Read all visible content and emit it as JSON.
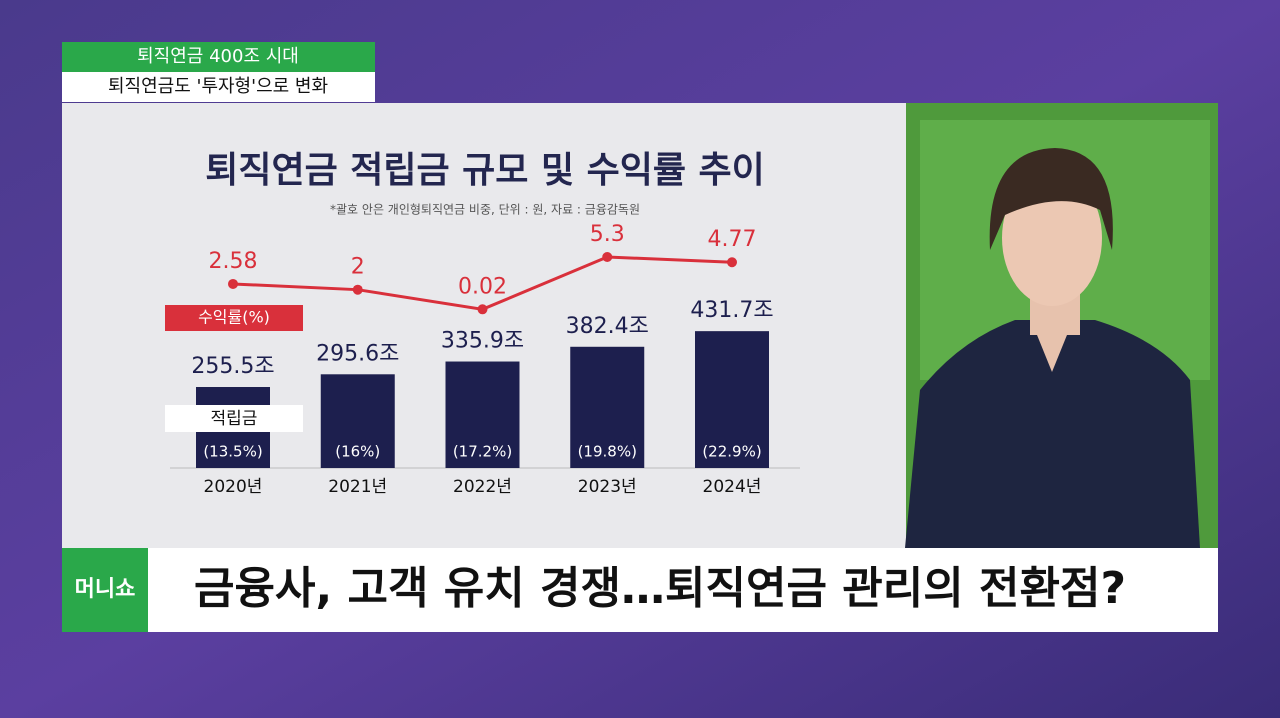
{
  "top_tag": {
    "title": "퇴직연금 400조 시대",
    "subtitle": "퇴직연금도 '투자형'으로 변화"
  },
  "chart_data": {
    "type": "bar_line",
    "title": "퇴직연금 적립금 규모 및 수익률 추이",
    "subtitle": "*괄호 안은 개인형퇴직연금 비중, 단위 : 원, 자료 : 금융감독원",
    "categories": [
      "2020년",
      "2021년",
      "2022년",
      "2023년",
      "2024년"
    ],
    "series": [
      {
        "name": "적립금",
        "color": "#1d1f4e",
        "values": [
          255.5,
          295.6,
          335.9,
          382.4,
          431.7
        ],
        "value_labels": [
          "255.5조",
          "295.6조",
          "335.9조",
          "382.4조",
          "431.7조"
        ],
        "share_labels": [
          "(13.5%)",
          "(16%)",
          "(17.2%)",
          "(19.8%)",
          "(22.9%)"
        ]
      },
      {
        "name": "수익률(%)",
        "color": "#d9303b",
        "values": [
          2.58,
          2,
          0.02,
          5.3,
          4.77
        ],
        "axis": "y2"
      }
    ],
    "ylim": [
      0,
      1000
    ],
    "y2lim": [
      -16,
      16
    ]
  },
  "logo": "머니쇼",
  "headline": "금융사, 고객 유치 경쟁…퇴직연금 관리의 전환점?"
}
